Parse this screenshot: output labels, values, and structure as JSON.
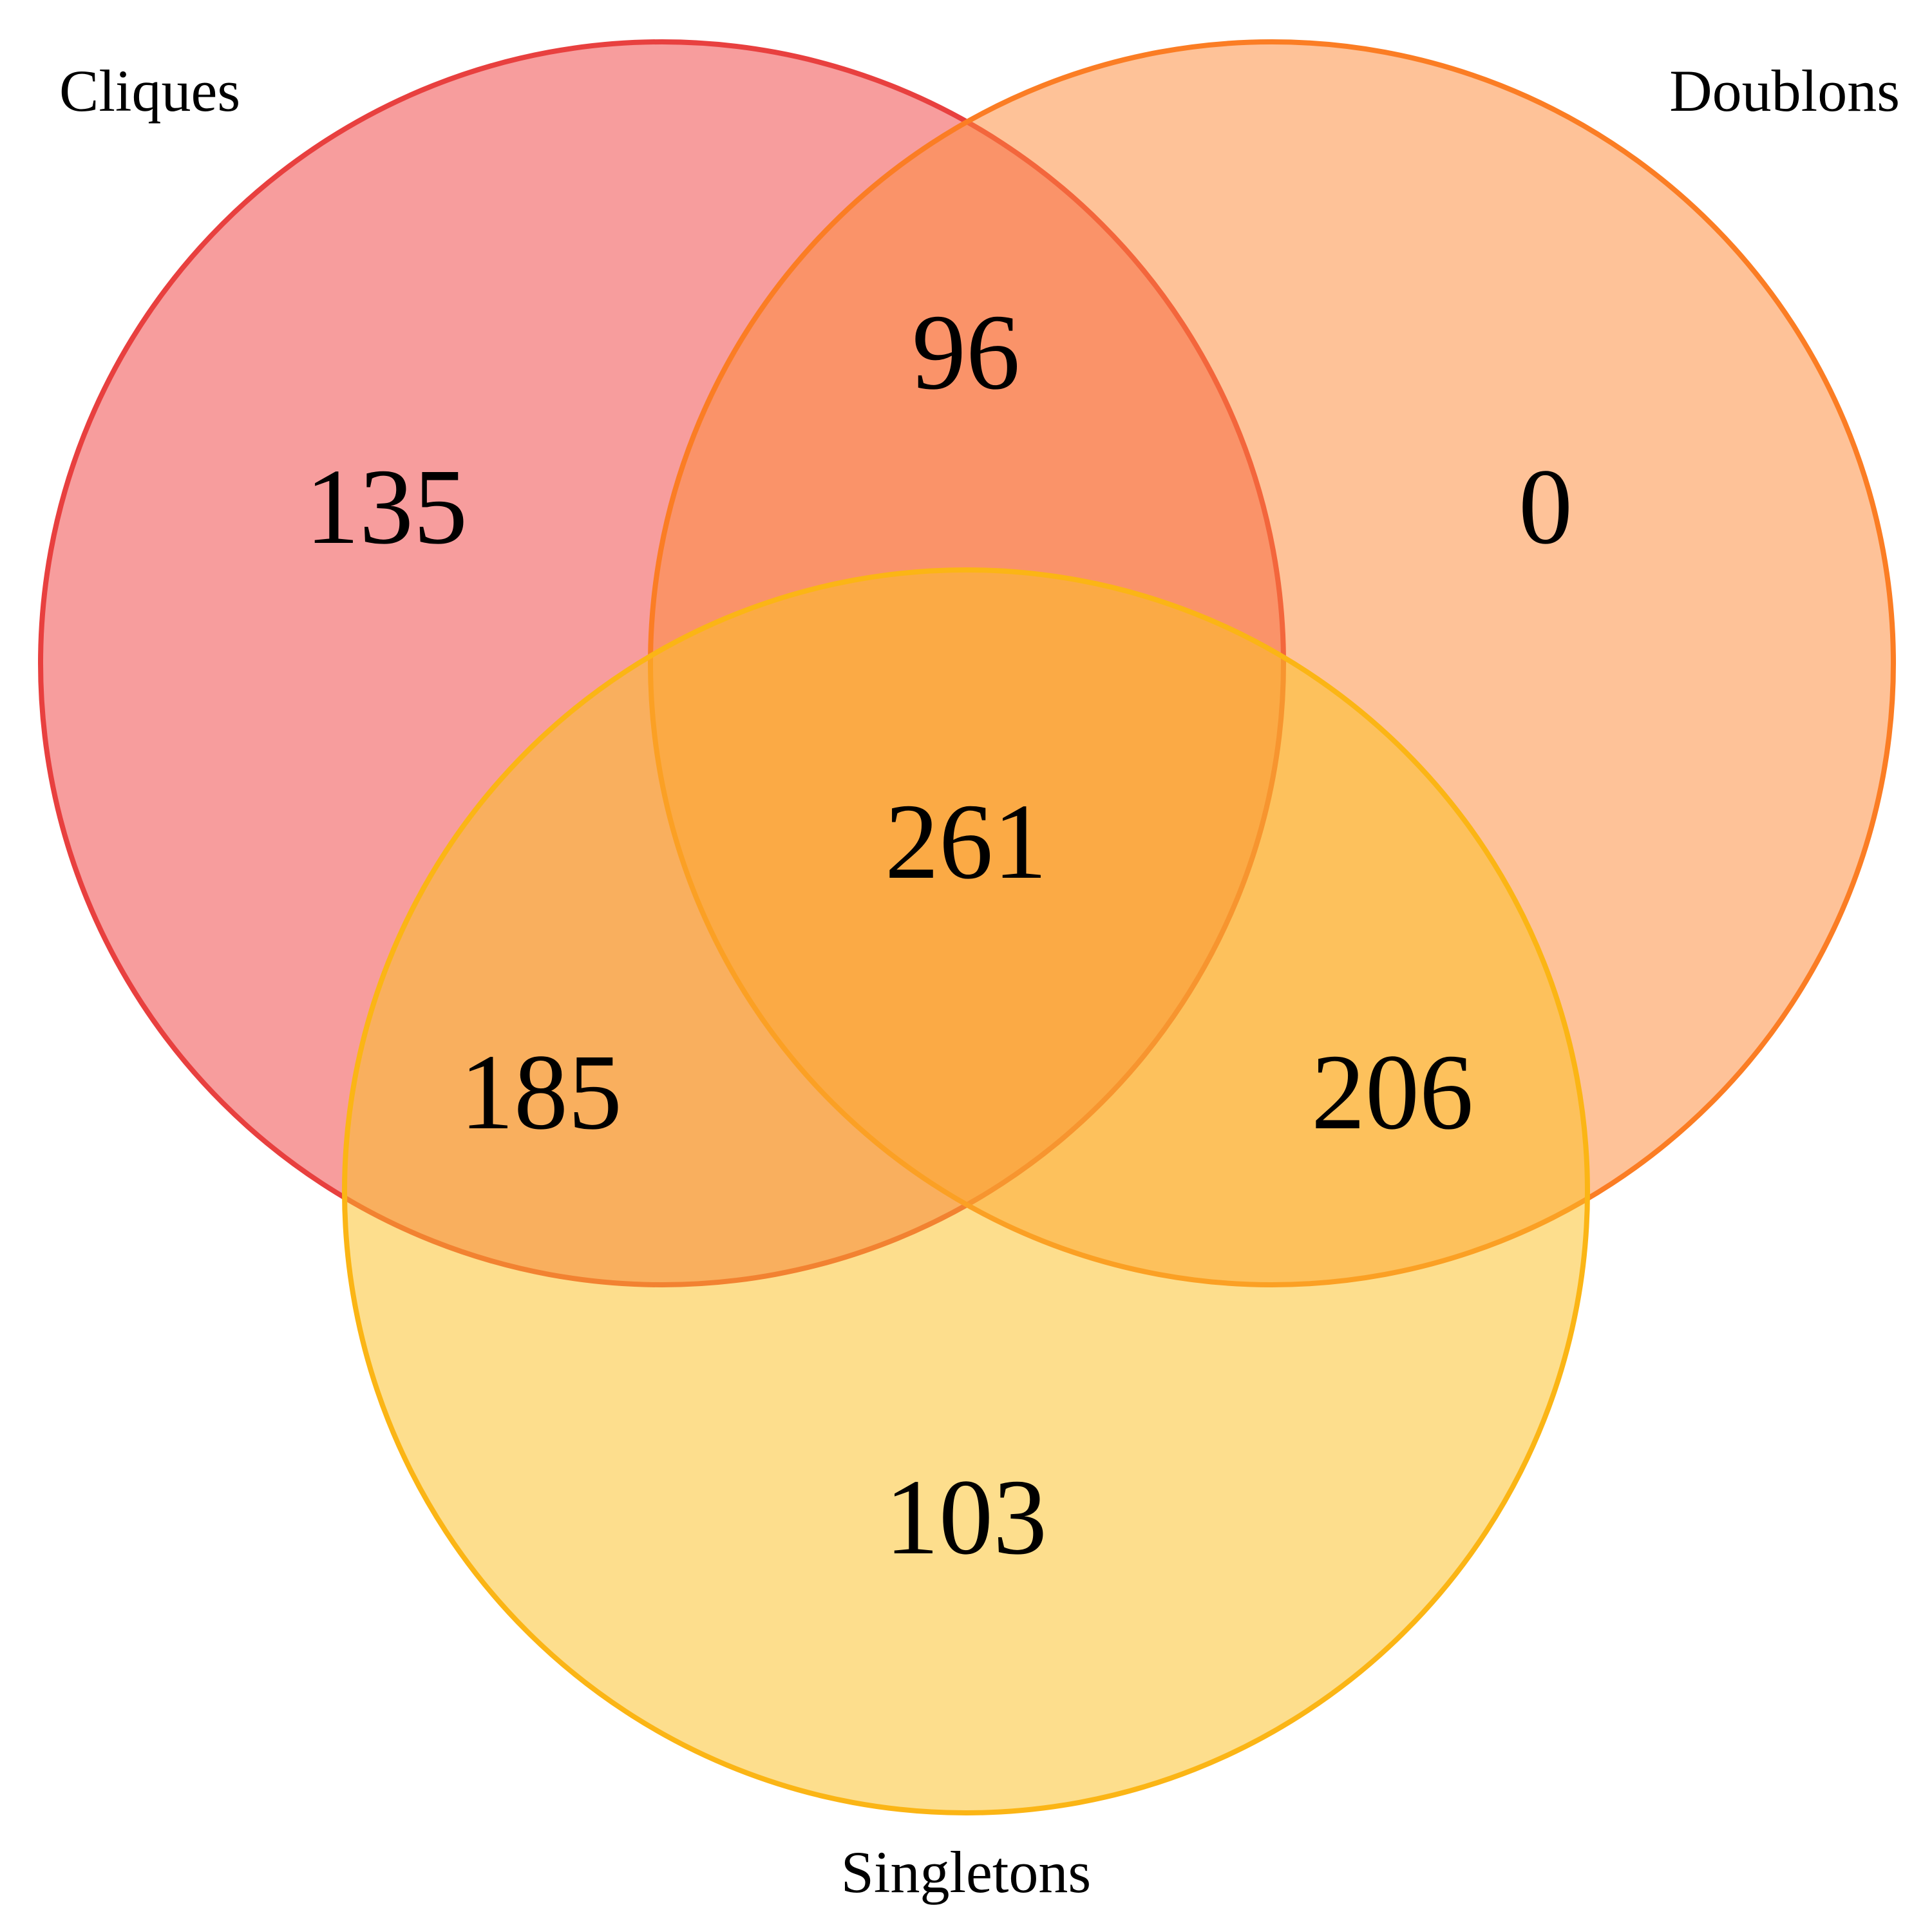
{
  "sets": [
    {
      "key": "cliques",
      "label": "Cliques",
      "fill": "#ef4444",
      "stroke": "#e8403f"
    },
    {
      "key": "doublons",
      "label": "Doublons",
      "fill": "#fd8a3a",
      "stroke": "#fb7d24"
    },
    {
      "key": "singletons",
      "label": "Singletons",
      "fill": "#fcbf24",
      "stroke": "#fbb515"
    }
  ],
  "regions": {
    "cliques_only": "135",
    "doublons_only": "0",
    "singletons_only": "103",
    "cliques_doublons": "96",
    "cliques_singletons": "185",
    "doublons_singletons": "206",
    "all_three": "261"
  }
}
